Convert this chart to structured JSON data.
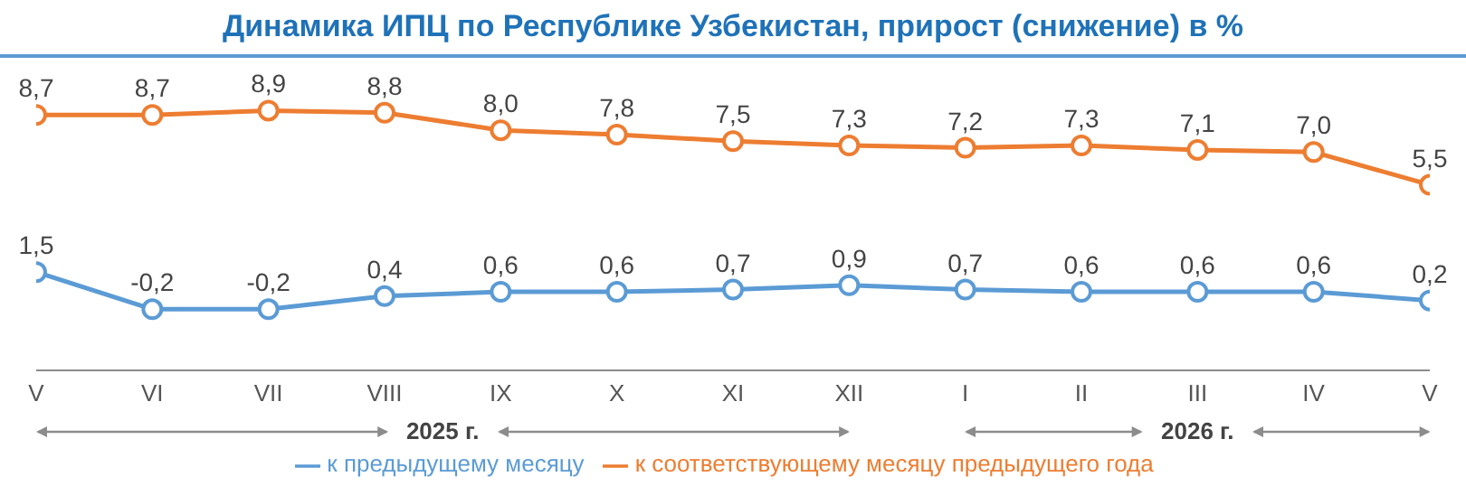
{
  "chart_data": {
    "type": "line",
    "title": "Динамика ИПЦ по Республике Узбекистан, прирост (снижение) в %",
    "categories": [
      "V",
      "VI",
      "VII",
      "VIII",
      "IX",
      "X",
      "XI",
      "XII",
      "I",
      "II",
      "III",
      "IV",
      "V"
    ],
    "series": [
      {
        "name": "к предыдущему месяцу",
        "color": "#5b9bd5",
        "values": [
          1.5,
          -0.2,
          -0.2,
          0.4,
          0.6,
          0.6,
          0.7,
          0.9,
          0.7,
          0.6,
          0.6,
          0.6,
          0.2
        ],
        "value_labels": [
          "1,5",
          "-0,2",
          "-0,2",
          "0,4",
          "0,6",
          "0,6",
          "0,7",
          "0,9",
          "0,7",
          "0,6",
          "0,6",
          "0,6",
          "0,2"
        ]
      },
      {
        "name": "к соответствующему месяцу предыдущего года",
        "color": "#ed7d31",
        "values": [
          8.7,
          8.7,
          8.9,
          8.8,
          8.0,
          7.8,
          7.5,
          7.3,
          7.2,
          7.3,
          7.1,
          7.0,
          5.5
        ],
        "value_labels": [
          "8,7",
          "8,7",
          "8,9",
          "8,8",
          "8,0",
          "7,8",
          "7,5",
          "7,3",
          "7,2",
          "7,3",
          "7,1",
          "7,0",
          "5,5"
        ]
      }
    ],
    "annotations": [
      "2025 г.",
      "2026 г."
    ],
    "legend": "bottom",
    "marker": "circle",
    "grid": false
  }
}
